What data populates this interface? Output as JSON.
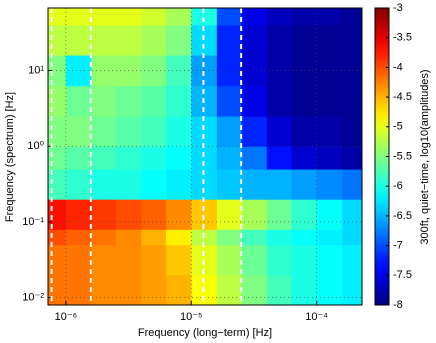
{
  "chart_data": {
    "type": "heatmap",
    "xlabel": "Frequency (long−term) [Hz]",
    "ylabel": "Frequency (spectrum) [Hz]",
    "colorbar_label": "300ft, quiet−time, log10(amplitudes)",
    "xscale": "log",
    "yscale": "log",
    "grid": true,
    "colormap": "jet",
    "xlim": [
      7.2e-07,
      0.00023
    ],
    "ylim": [
      0.008,
      67
    ],
    "xticks": [
      {
        "value": 1e-06,
        "label": "10⁻⁶"
      },
      {
        "value": 1e-05,
        "label": "10⁻⁵"
      },
      {
        "value": 0.0001,
        "label": "10⁻⁴"
      }
    ],
    "yticks": [
      {
        "value": 0.01,
        "label": "10⁻²"
      },
      {
        "value": 0.1,
        "label": "10⁻¹"
      },
      {
        "value": 1,
        "label": "10⁰"
      },
      {
        "value": 10,
        "label": "10¹"
      }
    ],
    "clim": [
      -8,
      -3
    ],
    "cticks": [
      -3,
      -3.5,
      -4,
      -4.5,
      -5,
      -5.5,
      -6,
      -6.5,
      -7,
      -7.5,
      -8
    ],
    "xbins": [
      7.2e-07,
      1e-06,
      1.6e-06,
      2.5e-06,
      4e-06,
      6.3e-06,
      1e-05,
      1.6e-05,
      2.5e-05,
      4e-05,
      6.3e-05,
      0.0001,
      0.00016,
      0.00023
    ],
    "ybins": [
      0.008,
      0.02,
      0.05,
      0.08,
      0.2,
      0.5,
      1,
      2.5,
      6.3,
      16,
      40,
      67
    ],
    "z": [
      [
        -4.2,
        -4.2,
        -4.3,
        -4.3,
        -4.4,
        -4.5,
        -4.9,
        -5.2,
        -5.5,
        -5.8,
        -6,
        -6.1,
        -6.2
      ],
      [
        -4.2,
        -4.2,
        -4.3,
        -4.3,
        -4.4,
        -4.6,
        -5,
        -5.3,
        -5.6,
        -5.9,
        -6,
        -6.1,
        -6.2
      ],
      [
        -4,
        -4.1,
        -4.2,
        -4.3,
        -4.5,
        -4.8,
        -5.2,
        -5.5,
        -5.8,
        -6,
        -6.1,
        -6.2,
        -6.3
      ],
      [
        -3.7,
        -3.8,
        -3.9,
        -4,
        -4.1,
        -4.3,
        -4.6,
        -5,
        -5.3,
        -5.6,
        -5.9,
        -6.1,
        -6.3
      ],
      [
        -5.8,
        -5.9,
        -6,
        -6,
        -6.1,
        -6.2,
        -6.3,
        -6.4,
        -6.5,
        -6.5,
        -6.6,
        -6.7,
        -6.8
      ],
      [
        -5.6,
        -5.7,
        -5.8,
        -5.9,
        -6,
        -6.1,
        -6.3,
        -6.5,
        -6.8,
        -7.3,
        -7.6,
        -7.7,
        -7.8
      ],
      [
        -5.5,
        -5.5,
        -5.6,
        -5.7,
        -5.8,
        -6,
        -6.3,
        -6.6,
        -7.2,
        -7.6,
        -7.8,
        -7.8,
        -7.9
      ],
      [
        -5.4,
        -5.6,
        -5.5,
        -5.6,
        -5.7,
        -5.9,
        -6.5,
        -7,
        -7.5,
        -7.8,
        -7.9,
        -7.9,
        -7.9
      ],
      [
        -5.5,
        -6.2,
        -5.4,
        -5.4,
        -5.5,
        -5.8,
        -6.6,
        -7.2,
        -7.6,
        -7.8,
        -7.9,
        -7.9,
        -7.9
      ],
      [
        -5.2,
        -5.2,
        -5.2,
        -5.2,
        -5.3,
        -5.5,
        -6.3,
        -7.2,
        -7.6,
        -7.8,
        -7.9,
        -7.9,
        -7.9
      ],
      [
        -5,
        -5,
        -5,
        -5,
        -5.1,
        -5.3,
        -6,
        -7,
        -7.5,
        -7.7,
        -7.8,
        -7.8,
        -7.9
      ]
    ],
    "vlines": [
      7.7e-07,
      1.58e-06,
      1.25e-05,
      2.5e-05
    ]
  }
}
